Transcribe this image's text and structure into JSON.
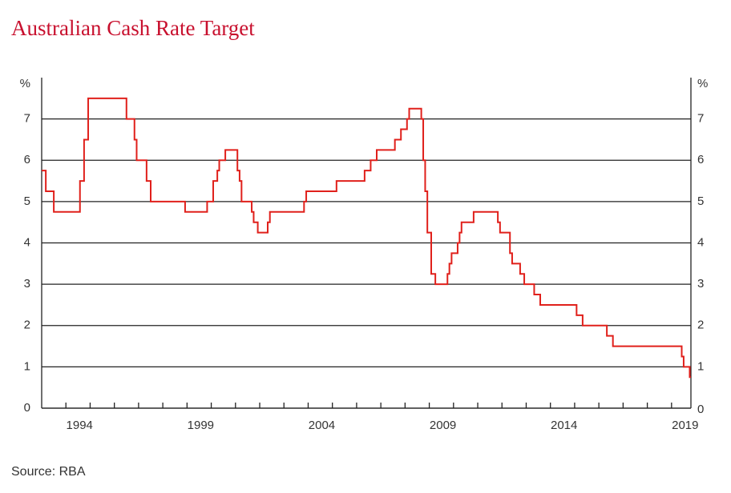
{
  "chart_data": {
    "type": "line",
    "title": "Australian Cash Rate Target",
    "source": "Source: RBA",
    "y_unit": "%",
    "y2_unit": "%",
    "xlim": [
      1993,
      2019.8
    ],
    "xticks": [
      1994,
      1999,
      2004,
      2009,
      2014,
      2019
    ],
    "xticks_minor": [
      1994,
      1995,
      1996,
      1997,
      1998,
      1999,
      2000,
      2001,
      2002,
      2003,
      2004,
      2005,
      2006,
      2007,
      2008,
      2009,
      2010,
      2011,
      2012,
      2013,
      2014,
      2015,
      2016,
      2017,
      2018,
      2019
    ],
    "ylim": [
      0,
      8
    ],
    "yticks": [
      0,
      1,
      2,
      3,
      4,
      5,
      6,
      7
    ],
    "y2lim": [
      0,
      8
    ],
    "y2ticks": [
      0,
      1,
      2,
      3,
      4,
      5,
      6,
      7
    ],
    "grid": true,
    "step": true,
    "series": [
      {
        "name": "Cash rate target",
        "color": "#e0201b",
        "x": [
          1993.0,
          1993.17,
          1993.5,
          1994.58,
          1994.75,
          1994.92,
          1996.5,
          1996.83,
          1996.92,
          1997.33,
          1997.5,
          1998.92,
          1999.83,
          2000.08,
          2000.25,
          2000.33,
          2000.58,
          2001.08,
          2001.17,
          2001.25,
          2001.67,
          2001.75,
          2001.92,
          2002.33,
          2002.42,
          2003.83,
          2003.92,
          2005.17,
          2006.33,
          2006.58,
          2006.83,
          2007.58,
          2007.83,
          2008.08,
          2008.17,
          2008.67,
          2008.75,
          2008.83,
          2008.92,
          2009.08,
          2009.25,
          2009.75,
          2009.83,
          2009.92,
          2010.17,
          2010.25,
          2010.33,
          2010.83,
          2011.83,
          2011.92,
          2012.33,
          2012.42,
          2012.75,
          2012.92,
          2013.33,
          2013.58,
          2015.08,
          2015.33,
          2016.33,
          2016.58,
          2019.42,
          2019.5,
          2019.75
        ],
        "values": [
          5.75,
          5.25,
          4.75,
          5.5,
          6.5,
          7.5,
          7.0,
          6.5,
          6.0,
          5.5,
          5.0,
          4.75,
          5.0,
          5.5,
          5.75,
          6.0,
          6.25,
          5.75,
          5.5,
          5.0,
          4.75,
          4.5,
          4.25,
          4.5,
          4.75,
          5.0,
          5.25,
          5.5,
          5.75,
          6.0,
          6.25,
          6.5,
          6.75,
          7.0,
          7.25,
          7.0,
          6.0,
          5.25,
          4.25,
          3.25,
          3.0,
          3.25,
          3.5,
          3.75,
          4.0,
          4.25,
          4.5,
          4.75,
          4.5,
          4.25,
          3.75,
          3.5,
          3.25,
          3.0,
          2.75,
          2.5,
          2.25,
          2.0,
          1.75,
          1.5,
          1.25,
          1.0,
          0.75
        ]
      }
    ]
  }
}
